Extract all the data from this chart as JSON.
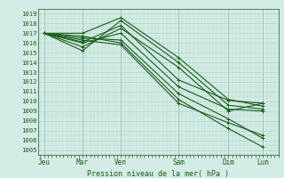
{
  "xlabel": "Pression niveau de la mer( hPa )",
  "ylim": [
    1004.5,
    1019.5
  ],
  "yticks": [
    1005,
    1006,
    1007,
    1008,
    1009,
    1010,
    1011,
    1012,
    1013,
    1014,
    1015,
    1016,
    1017,
    1018,
    1019
  ],
  "bg_color": "#d4ece6",
  "grid_color": "#a8cfc6",
  "line_color": "#1a5c1a",
  "line_width": 0.8,
  "marker": "+",
  "marker_size": 2.5,
  "day_labels": [
    "Jeu",
    "Mar",
    "Ven",
    "Sam",
    "Dim",
    "Lun"
  ],
  "day_x": [
    0,
    1,
    2,
    3.5,
    4.8,
    5.7
  ],
  "xlim": [
    -0.15,
    6.1
  ],
  "series": [
    [
      1017.0,
      1017.0,
      1018.6,
      1014.5,
      1010.2,
      1009.5
    ],
    [
      1017.0,
      1015.2,
      1018.3,
      1014.0,
      1009.6,
      1009.2
    ],
    [
      1017.0,
      1015.6,
      1017.5,
      1013.5,
      1009.0,
      1009.8
    ],
    [
      1017.0,
      1016.1,
      1017.8,
      1012.2,
      1010.1,
      1009.8
    ],
    [
      1017.0,
      1016.0,
      1017.0,
      1011.5,
      1009.2,
      1009.0
    ],
    [
      1017.0,
      1016.5,
      1016.3,
      1010.8,
      1008.2,
      1006.2
    ],
    [
      1017.0,
      1016.7,
      1016.0,
      1010.2,
      1007.2,
      1005.3
    ],
    [
      1017.0,
      1016.3,
      1015.8,
      1009.8,
      1007.8,
      1006.5
    ]
  ],
  "vline_x": [
    0,
    1,
    2,
    3.5,
    4.8,
    5.7
  ]
}
